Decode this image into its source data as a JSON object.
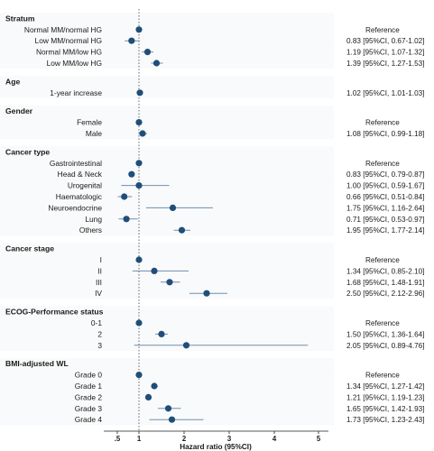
{
  "chart_data": {
    "type": "forest",
    "xlabel": "Hazard ratio (95%CI)",
    "x_ticks": [
      ".5",
      "1",
      "2",
      "3",
      "4",
      "5"
    ],
    "x_tick_values": [
      0.5,
      1,
      2,
      3,
      4,
      5
    ],
    "xlim": [
      0.5,
      5
    ],
    "reference_line": 1,
    "marker_color": "#1f4e79",
    "ci_color": "#6f8fb0",
    "groups": [
      {
        "name": "Stratum",
        "rows": [
          {
            "label": "Normal MM/normal HG",
            "hr": 1.0,
            "lo": null,
            "hi": null,
            "estimate_text": "Reference"
          },
          {
            "label": "Low MM/normal HG",
            "hr": 0.83,
            "lo": 0.67,
            "hi": 1.02,
            "estimate_text": "0.83 [95%CI, 0.67-1.02]"
          },
          {
            "label": "Normal MM/low HG",
            "hr": 1.19,
            "lo": 1.07,
            "hi": 1.32,
            "estimate_text": "1.19 [95%CI, 1.07-1.32]"
          },
          {
            "label": "Low MM/low HG",
            "hr": 1.39,
            "lo": 1.27,
            "hi": 1.53,
            "estimate_text": "1.39 [95%CI, 1.27-1.53]"
          }
        ]
      },
      {
        "name": "Age",
        "rows": [
          {
            "label": "1-year increase",
            "hr": 1.02,
            "lo": 1.01,
            "hi": 1.03,
            "estimate_text": "1.02 [95%CI, 1.01-1.03]"
          }
        ]
      },
      {
        "name": "Gender",
        "rows": [
          {
            "label": "Female",
            "hr": 1.0,
            "lo": null,
            "hi": null,
            "estimate_text": "Reference"
          },
          {
            "label": "Male",
            "hr": 1.08,
            "lo": 0.99,
            "hi": 1.18,
            "estimate_text": "1.08 [95%CI, 0.99-1.18]"
          }
        ]
      },
      {
        "name": "Cancer type",
        "rows": [
          {
            "label": "Gastrointestinal",
            "hr": 1.0,
            "lo": null,
            "hi": null,
            "estimate_text": "Reference"
          },
          {
            "label": "Head & Neck",
            "hr": 0.83,
            "lo": 0.79,
            "hi": 0.87,
            "estimate_text": "0.83 [95%CI, 0.79-0.87]"
          },
          {
            "label": "Urogenital",
            "hr": 1.0,
            "lo": 0.59,
            "hi": 1.67,
            "estimate_text": "1.00 [95%CI, 0.59-1.67]"
          },
          {
            "label": "Haematologic",
            "hr": 0.66,
            "lo": 0.51,
            "hi": 0.84,
            "estimate_text": "0.66 [95%CI, 0.51-0.84]"
          },
          {
            "label": "Neuroendocrine",
            "hr": 1.75,
            "lo": 1.16,
            "hi": 2.64,
            "estimate_text": "1.75 [95%CI, 1.16-2.64]"
          },
          {
            "label": "Lung",
            "hr": 0.71,
            "lo": 0.53,
            "hi": 0.97,
            "estimate_text": "0.71 [95%CI, 0.53-0.97]"
          },
          {
            "label": "Others",
            "hr": 1.95,
            "lo": 1.77,
            "hi": 2.14,
            "estimate_text": "1.95 [95%CI, 1.77-2.14]"
          }
        ]
      },
      {
        "name": "Cancer stage",
        "rows": [
          {
            "label": "I",
            "hr": 1.0,
            "lo": null,
            "hi": null,
            "estimate_text": "Reference"
          },
          {
            "label": "II",
            "hr": 1.34,
            "lo": 0.85,
            "hi": 2.1,
            "estimate_text": "1.34 [95%CI, 0.85-2.10]"
          },
          {
            "label": "III",
            "hr": 1.68,
            "lo": 1.48,
            "hi": 1.91,
            "estimate_text": "1.68 [95%CI, 1.48-1.91]"
          },
          {
            "label": "IV",
            "hr": 2.5,
            "lo": 2.12,
            "hi": 2.96,
            "estimate_text": "2.50 [95%CI, 2.12-2.96]"
          }
        ]
      },
      {
        "name": "ECOG-Performance status",
        "rows": [
          {
            "label": "0-1",
            "hr": 1.0,
            "lo": null,
            "hi": null,
            "estimate_text": "Reference"
          },
          {
            "label": "2",
            "hr": 1.5,
            "lo": 1.36,
            "hi": 1.64,
            "estimate_text": "1.50 [95%CI, 1.36-1.64]"
          },
          {
            "label": "3",
            "hr": 2.05,
            "lo": 0.89,
            "hi": 4.76,
            "estimate_text": "2.05 [95%CI, 0.89-4.76]"
          }
        ]
      },
      {
        "name": "BMI-adjusted WL",
        "rows": [
          {
            "label": "Grade 0",
            "hr": 1.0,
            "lo": null,
            "hi": null,
            "estimate_text": "Reference"
          },
          {
            "label": "Grade 1",
            "hr": 1.34,
            "lo": 1.27,
            "hi": 1.42,
            "estimate_text": "1.34 [95%CI, 1.27-1.42]"
          },
          {
            "label": "Grade 2",
            "hr": 1.21,
            "lo": 1.19,
            "hi": 1.23,
            "estimate_text": "1.21 [95%CI, 1.19-1.23]"
          },
          {
            "label": "Grade 3",
            "hr": 1.65,
            "lo": 1.42,
            "hi": 1.93,
            "estimate_text": "1.65 [95%CI, 1.42-1.93]"
          },
          {
            "label": "Grade 4",
            "hr": 1.73,
            "lo": 1.23,
            "hi": 2.43,
            "estimate_text": "1.73 [95%CI, 1.23-2.43]"
          }
        ]
      }
    ]
  }
}
